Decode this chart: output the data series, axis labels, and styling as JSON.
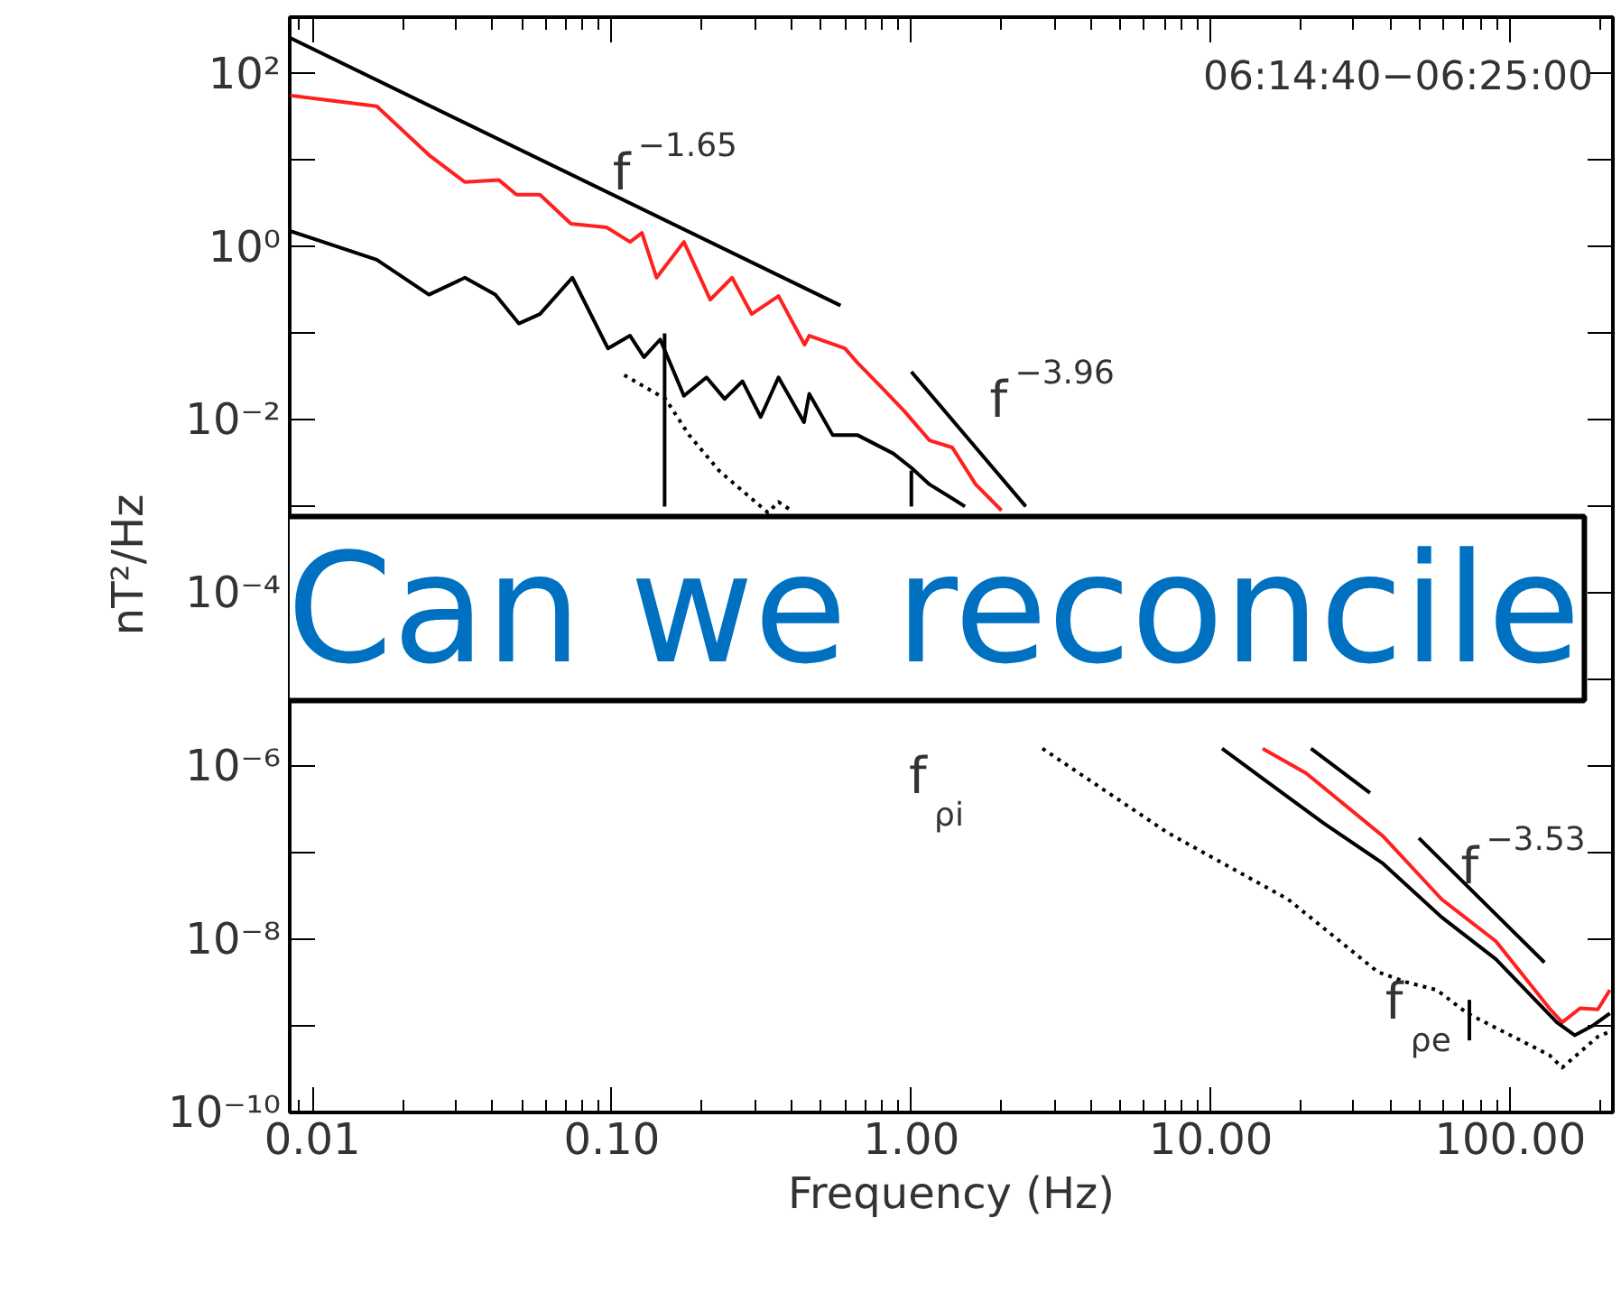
{
  "chart_data": {
    "type": "line",
    "xlabel": "Frequency (Hz)",
    "ylabel": "nT²/Hz",
    "log": "xy",
    "grid": false,
    "xlim": [
      0.0084,
      220
    ],
    "ylim": [
      1e-10,
      450
    ],
    "xticks": [
      {
        "value": 0.01,
        "label": "0.01"
      },
      {
        "value": 0.1,
        "label": "0.10"
      },
      {
        "value": 1,
        "label": "1.00"
      },
      {
        "value": 10,
        "label": "10.00"
      },
      {
        "value": 100,
        "label": "100.00"
      }
    ],
    "yticks": [
      {
        "value": 1e-10,
        "label": "10⁻¹⁰"
      },
      {
        "value": 1e-09,
        "label": null
      },
      {
        "value": 1e-08,
        "label": "10⁻⁸"
      },
      {
        "value": 1e-07,
        "label": null
      },
      {
        "value": 1e-06,
        "label": "10⁻⁶"
      },
      {
        "value": 1e-05,
        "label": null
      },
      {
        "value": 0.0001,
        "label": "10⁻⁴"
      },
      {
        "value": 0.001,
        "label": null
      },
      {
        "value": 0.01,
        "label": "10⁻²"
      },
      {
        "value": 0.1,
        "label": null
      },
      {
        "value": 1,
        "label": "10⁰"
      },
      {
        "value": 10,
        "label": null
      },
      {
        "value": 100,
        "label": "10²"
      }
    ],
    "series": [
      {
        "color": "#ff2020",
        "line_style": "solid",
        "x": [
          0.0084,
          0.0164,
          0.0245,
          0.0323,
          0.042,
          0.048,
          0.0575,
          0.073,
          0.096,
          0.115,
          0.126,
          0.141,
          0.174,
          0.213,
          0.252,
          0.293,
          0.36,
          0.44,
          0.456,
          0.6,
          0.66,
          0.79,
          0.95,
          1.15,
          1.37,
          1.64,
          2.0,
          5,
          14.9,
          20.8,
          37.6,
          59,
          89.5,
          135,
          149,
          171,
          196,
          215
        ],
        "values": [
          56,
          42,
          11.5,
          5.6,
          5.9,
          4.0,
          4.0,
          1.85,
          1.68,
          1.14,
          1.45,
          0.44,
          1.14,
          0.245,
          0.44,
          0.167,
          0.27,
          0.074,
          0.094,
          0.067,
          0.046,
          0.0244,
          0.0125,
          0.0058,
          0.0048,
          0.0018,
          0.0009,
          null,
          1.6e-06,
          8.3e-07,
          1.55e-07,
          2.9e-08,
          9.5e-09,
          1.6e-09,
          1.1e-09,
          1.6e-09,
          1.55e-09,
          2.6e-09
        ]
      },
      {
        "color": "#000000",
        "line_style": "solid",
        "x": [
          0.0084,
          0.0164,
          0.0245,
          0.0323,
          0.0408,
          0.0489,
          0.0575,
          0.0738,
          0.097,
          0.115,
          0.128,
          0.145,
          0.174,
          0.207,
          0.238,
          0.273,
          0.314,
          0.36,
          0.438,
          0.456,
          0.546,
          0.66,
          0.87,
          1.0,
          1.15,
          1.37,
          1.51,
          5,
          10.9,
          14.9,
          23.8,
          37.6,
          59,
          89.5,
          143,
          164,
          188,
          215
        ],
        "values": [
          1.53,
          0.71,
          0.28,
          0.44,
          0.28,
          0.13,
          0.167,
          0.44,
          0.067,
          0.094,
          0.053,
          0.085,
          0.019,
          0.031,
          0.0175,
          0.028,
          0.0108,
          0.031,
          0.0094,
          0.02,
          0.0067,
          0.0067,
          0.0041,
          0.0028,
          0.0018,
          0.00124,
          0.001,
          null,
          1.6e-06,
          7.2e-07,
          2.2e-07,
          7.5e-08,
          1.8e-08,
          5.9e-09,
          1.1e-09,
          7.8e-10,
          1e-09,
          1.4e-09
        ]
      },
      {
        "color": "#000000",
        "line_style": "dotted",
        "x": [
          0.11,
          0.151,
          0.181,
          0.229,
          0.332,
          0.36,
          0.397,
          1.5,
          2.74,
          7.18,
          18.1,
          36.1,
          45,
          56.8,
          71.8,
          135,
          149,
          196,
          215
        ],
        "values": [
          0.033,
          0.0175,
          0.0067,
          0.00255,
          0.00085,
          0.00113,
          0.0009,
          null,
          1.6e-06,
          1.7e-07,
          2.9e-08,
          4.2e-09,
          3.2e-09,
          2.6e-09,
          1.4e-09,
          4.6e-10,
          3.3e-10,
          7.5e-10,
          8.6e-10
        ]
      },
      {
        "color": "#000000",
        "line_style": "solid",
        "x": [
          0.0084,
          0.58
        ],
        "values": [
          260,
          0.21
        ]
      },
      {
        "color": "#000000",
        "line_style": "solid",
        "x": [
          1.0,
          2.41
        ],
        "values": [
          0.036,
          0.001
        ]
      },
      {
        "color": "#000000",
        "line_style": "solid",
        "x": [
          21.6,
          34
        ],
        "values": [
          1.6e-06,
          4.9e-07
        ]
      },
      {
        "color": "#000000",
        "line_style": "solid",
        "x": [
          49.5,
          130
        ],
        "values": [
          1.48e-07,
          5.4e-09
        ]
      },
      {
        "color": "#000000",
        "line_style": "solid",
        "x": [
          0.15,
          0.15
        ],
        "values": [
          0.001,
          0.1
        ]
      },
      {
        "color": "#000000",
        "line_style": "solid",
        "x": [
          1.0,
          1.0
        ],
        "values": [
          0.001,
          0.0026
        ]
      },
      {
        "color": "#000000",
        "line_style": "solid",
        "x": [
          73,
          73
        ],
        "values": [
          6.8e-10,
          2e-09
        ]
      }
    ],
    "annotations": [
      "06:14:40−06:25:00",
      "Can we reconcile",
      "f$^{−1.65}$",
      "f$^{−3.96}$",
      "f$^{−3.53}$",
      "f$_{ρi}$",
      "f$_{ρe}$"
    ]
  }
}
